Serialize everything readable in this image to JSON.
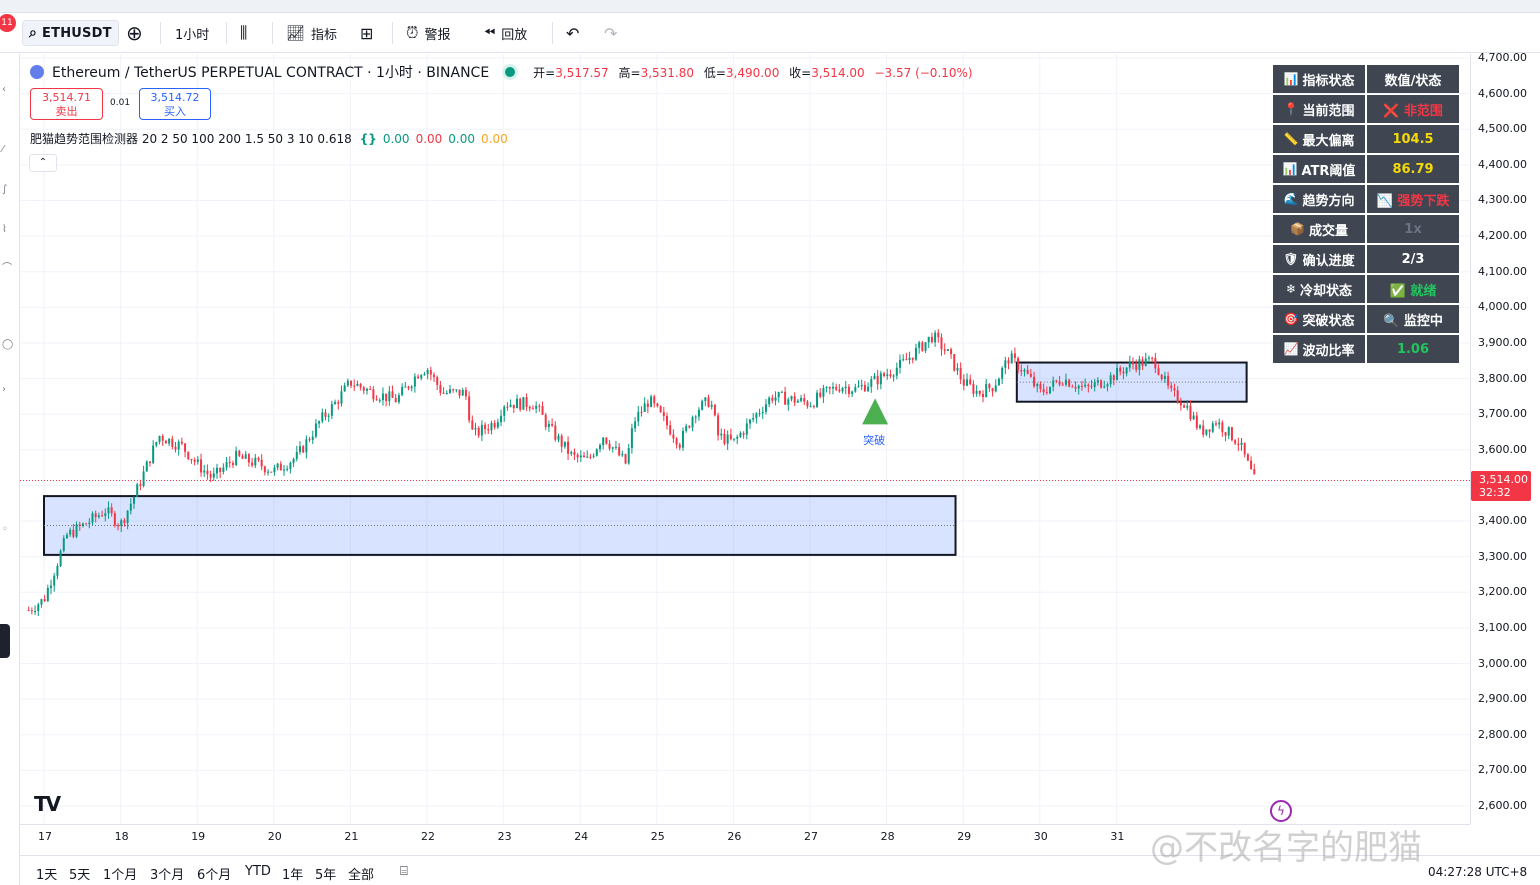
{
  "toolbar": {
    "notification_count": "11",
    "symbol": "ETHUSDT",
    "interval": "1小时",
    "indicators_label": "指标",
    "alerts_label": "警报",
    "replay_label": "回放"
  },
  "legend": {
    "title": "Ethereum / TetherUS PERPETUAL CONTRACT · 1小时 · BINANCE",
    "open_label": "开=",
    "open": "3,517.57",
    "high_label": "高=",
    "high": "3,531.80",
    "low_label": "低=",
    "low": "3,490.00",
    "close_label": "收=",
    "close": "3,514.00",
    "change": "−3.57 (−0.10%)"
  },
  "order": {
    "sell_price": "3,514.71",
    "sell_label": "卖出",
    "spread": "0.01",
    "buy_price": "3,514.72",
    "buy_label": "买入"
  },
  "indicator": {
    "name": "肥猫趋势范围检测器 20 2 50 100 200 1.5 50 3 10 0.618",
    "values": [
      "0.00",
      "0.00",
      "0.00",
      "0.00"
    ],
    "value_colors": [
      "#089981",
      "#f23645",
      "#089981",
      "#f5a623"
    ]
  },
  "breakout_label": "突破",
  "stats_table": {
    "header": {
      "left": "指标状态",
      "right": "数值/状态"
    },
    "rows": [
      {
        "icon": "📍",
        "label": "当前范围",
        "value": "❌ 非范围",
        "color": "#f23645"
      },
      {
        "icon": "📏",
        "label": "最大偏离",
        "value": "104.5",
        "color": "#f5d90a"
      },
      {
        "icon": "📊",
        "label": "ATR阈值",
        "value": "86.79",
        "color": "#f5d90a"
      },
      {
        "icon": "🌊",
        "label": "趋势方向",
        "value": "📉 强势下跌",
        "color": "#f23645"
      },
      {
        "icon": "📦",
        "label": "成交量",
        "value": "1x",
        "color": "#6b7280"
      },
      {
        "icon": "🛡",
        "label": "确认进度",
        "value": "2/3",
        "color": "#ffffff"
      },
      {
        "icon": "❄",
        "label": "冷却状态",
        "value": "✅ 就绪",
        "color": "#22c55e"
      },
      {
        "icon": "🎯",
        "label": "突破状态",
        "value": "🔍 监控中",
        "color": "#ffffff"
      },
      {
        "icon": "📈",
        "label": "波动比率",
        "value": "1.06",
        "color": "#22c55e"
      }
    ]
  },
  "price_axis": [
    "4,700.00",
    "4,600.00",
    "4,500.00",
    "4,400.00",
    "4,300.00",
    "4,200.00",
    "4,100.00",
    "4,000.00",
    "3,900.00",
    "3,800.00",
    "3,700.00",
    "3,600.00",
    "3,500.00",
    "3,400.00",
    "3,300.00",
    "3,200.00",
    "3,100.00",
    "3,000.00",
    "2,900.00",
    "2,800.00",
    "2,700.00",
    "2,600.00"
  ],
  "current_price": {
    "price": "3,514.00",
    "countdown": "32:32"
  },
  "time_axis": [
    "17",
    "18",
    "19",
    "20",
    "21",
    "22",
    "23",
    "24",
    "25",
    "26",
    "27",
    "28",
    "29",
    "30",
    "31"
  ],
  "ranges": [
    "1天",
    "5天",
    "1个月",
    "3个月",
    "6个月",
    "YTD",
    "1年",
    "5年",
    "全部"
  ],
  "clock": "04:27:28 UTC+8",
  "watermark": "@不改名字的肥猫",
  "chart_data": {
    "type": "candlestick",
    "ylim": [
      2550,
      4720
    ],
    "x_days": [
      17,
      31.9
    ],
    "close_series_keyframes": [
      [
        16.8,
        3150
      ],
      [
        17.0,
        3180
      ],
      [
        17.3,
        3360
      ],
      [
        17.6,
        3400
      ],
      [
        17.8,
        3430
      ],
      [
        18.0,
        3390
      ],
      [
        18.2,
        3480
      ],
      [
        18.5,
        3640
      ],
      [
        18.8,
        3610
      ],
      [
        19.0,
        3560
      ],
      [
        19.2,
        3520
      ],
      [
        19.5,
        3580
      ],
      [
        19.8,
        3560
      ],
      [
        20.0,
        3540
      ],
      [
        20.3,
        3580
      ],
      [
        20.6,
        3680
      ],
      [
        20.8,
        3730
      ],
      [
        21.0,
        3790
      ],
      [
        21.3,
        3760
      ],
      [
        21.6,
        3740
      ],
      [
        21.9,
        3820
      ],
      [
        22.0,
        3830
      ],
      [
        22.2,
        3760
      ],
      [
        22.5,
        3760
      ],
      [
        22.6,
        3640
      ],
      [
        22.9,
        3680
      ],
      [
        23.0,
        3730
      ],
      [
        23.4,
        3730
      ],
      [
        23.6,
        3660
      ],
      [
        23.9,
        3580
      ],
      [
        24.1,
        3570
      ],
      [
        24.3,
        3640
      ],
      [
        24.6,
        3560
      ],
      [
        24.7,
        3680
      ],
      [
        24.9,
        3740
      ],
      [
        25.1,
        3680
      ],
      [
        25.3,
        3620
      ],
      [
        25.5,
        3710
      ],
      [
        25.7,
        3740
      ],
      [
        25.8,
        3640
      ],
      [
        26.0,
        3620
      ],
      [
        26.3,
        3700
      ],
      [
        26.5,
        3750
      ],
      [
        26.8,
        3740
      ],
      [
        27.0,
        3730
      ],
      [
        27.2,
        3760
      ],
      [
        27.4,
        3780
      ],
      [
        27.6,
        3770
      ],
      [
        27.9,
        3800
      ],
      [
        28.2,
        3840
      ],
      [
        28.4,
        3880
      ],
      [
        28.6,
        3920
      ],
      [
        28.8,
        3870
      ],
      [
        29.0,
        3790
      ],
      [
        29.2,
        3760
      ],
      [
        29.4,
        3780
      ],
      [
        29.6,
        3860
      ],
      [
        29.8,
        3820
      ],
      [
        30.0,
        3760
      ],
      [
        30.3,
        3800
      ],
      [
        30.6,
        3770
      ],
      [
        30.9,
        3800
      ],
      [
        31.2,
        3840
      ],
      [
        31.5,
        3850
      ],
      [
        31.7,
        3760
      ],
      [
        31.9,
        3730
      ],
      [
        32.1,
        3650
      ],
      [
        32.3,
        3680
      ],
      [
        32.6,
        3620
      ],
      [
        32.8,
        3514
      ]
    ],
    "ranges": [
      {
        "x0": 17.0,
        "x1": 28.9,
        "top": 3470,
        "bottom": 3305
      },
      {
        "x0": 29.7,
        "x1": 32.7,
        "top": 3845,
        "bottom": 3735
      }
    ],
    "breakout_marker": {
      "x": 27.85,
      "y": 3705
    }
  }
}
